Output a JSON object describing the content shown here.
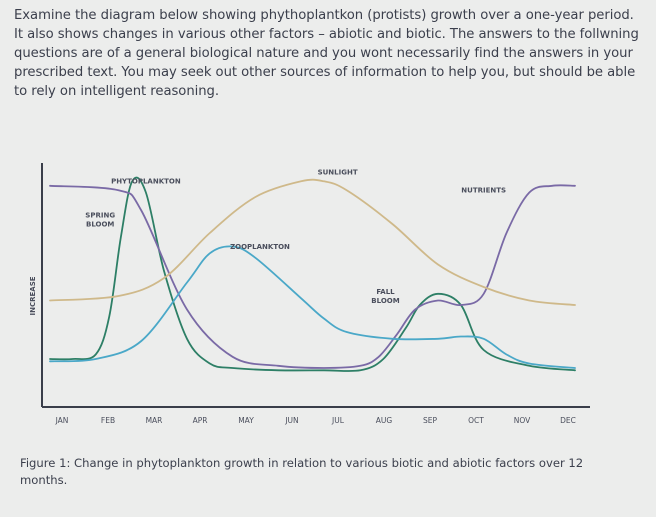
{
  "intro": "Examine the diagram below showing phythoplantkon (protists) growth over a one-year period. It also shows changes in various other factors – abiotic and biotic. The answers to the follwning questions are of a general biological nature and you wont necessarily find the answers in your prescribed text. You may seek out other sources of information to help you, but should be able to rely on intelligent reasoning.",
  "caption": "Figure 1: Change in phytoplankton growth in relation to various biotic and abiotic factors over 12 months.",
  "chart_data": {
    "type": "line",
    "categories": [
      "JAN",
      "FEB",
      "MAR",
      "APR",
      "MAY",
      "JUN",
      "JUL",
      "AUG",
      "SEP",
      "OCT",
      "NOV",
      "DEC"
    ],
    "ylabel": "INCREASE",
    "xlabel": "",
    "xlim": [
      0,
      11.5
    ],
    "ylim": [
      0,
      100
    ],
    "series": [
      {
        "name": "PHYTOPLANKTON",
        "color": "#2d7f66",
        "x": [
          0,
          0.5,
          1.0,
          1.3,
          1.55,
          1.8,
          2.1,
          2.5,
          3.0,
          3.5,
          4.0,
          5.0,
          6.0,
          6.8,
          7.3,
          7.8,
          8.1,
          8.5,
          9.0,
          9.5,
          10.5,
          11.5
        ],
        "y": [
          16,
          16,
          18,
          35,
          70,
          95,
          90,
          55,
          25,
          14,
          12,
          11,
          11,
          11,
          16,
          30,
          40,
          45,
          40,
          20,
          13,
          11
        ]
      },
      {
        "name": "NUTRIENTS",
        "color": "#7a6aa6",
        "x": [
          0,
          1.5,
          2.0,
          3.0,
          4.0,
          5.0,
          6.0,
          6.8,
          7.2,
          7.6,
          8.0,
          8.5,
          9.0,
          9.5,
          10.0,
          10.5,
          11.0,
          11.5
        ],
        "y": [
          93,
          91,
          82,
          38,
          17,
          13,
          12,
          13,
          17,
          27,
          38,
          42,
          40,
          45,
          72,
          90,
          93,
          93
        ]
      },
      {
        "name": "SUNLIGHT",
        "color": "#cfb98a",
        "x": [
          0,
          1.5,
          2.5,
          3.5,
          4.5,
          5.5,
          6.0,
          6.5,
          7.5,
          8.5,
          9.5,
          10.5,
          11.5
        ],
        "y": [
          42,
          44,
          52,
          72,
          88,
          95,
          95,
          91,
          76,
          58,
          48,
          42,
          40
        ]
      },
      {
        "name": "ZOOPLANKTON",
        "color": "#4aa8c8",
        "x": [
          0,
          1.0,
          2.0,
          3.0,
          3.5,
          4.0,
          4.5,
          5.5,
          6.0,
          6.5,
          7.5,
          8.5,
          9.0,
          9.5,
          10.0,
          10.5,
          11.5
        ],
        "y": [
          15,
          16,
          24,
          50,
          63,
          66,
          61,
          43,
          34,
          28,
          25,
          25,
          26,
          25,
          18,
          14,
          12
        ]
      }
    ],
    "annotations": [
      {
        "text": "PHYTOPLANKTON",
        "x": 2.1,
        "y": 94
      },
      {
        "text": "SUNLIGHT",
        "x": 6.3,
        "y": 98
      },
      {
        "text": "NUTRIENTS",
        "x": 9.5,
        "y": 90
      },
      {
        "text": "SPRING",
        "x": 1.1,
        "y": 79
      },
      {
        "text": "BLOOM",
        "x": 1.1,
        "y": 75
      },
      {
        "text": "ZOOPLANKTON",
        "x": 4.6,
        "y": 65
      },
      {
        "text": "FALL",
        "x": 7.35,
        "y": 45
      },
      {
        "text": "BLOOM",
        "x": 7.35,
        "y": 41
      }
    ]
  }
}
